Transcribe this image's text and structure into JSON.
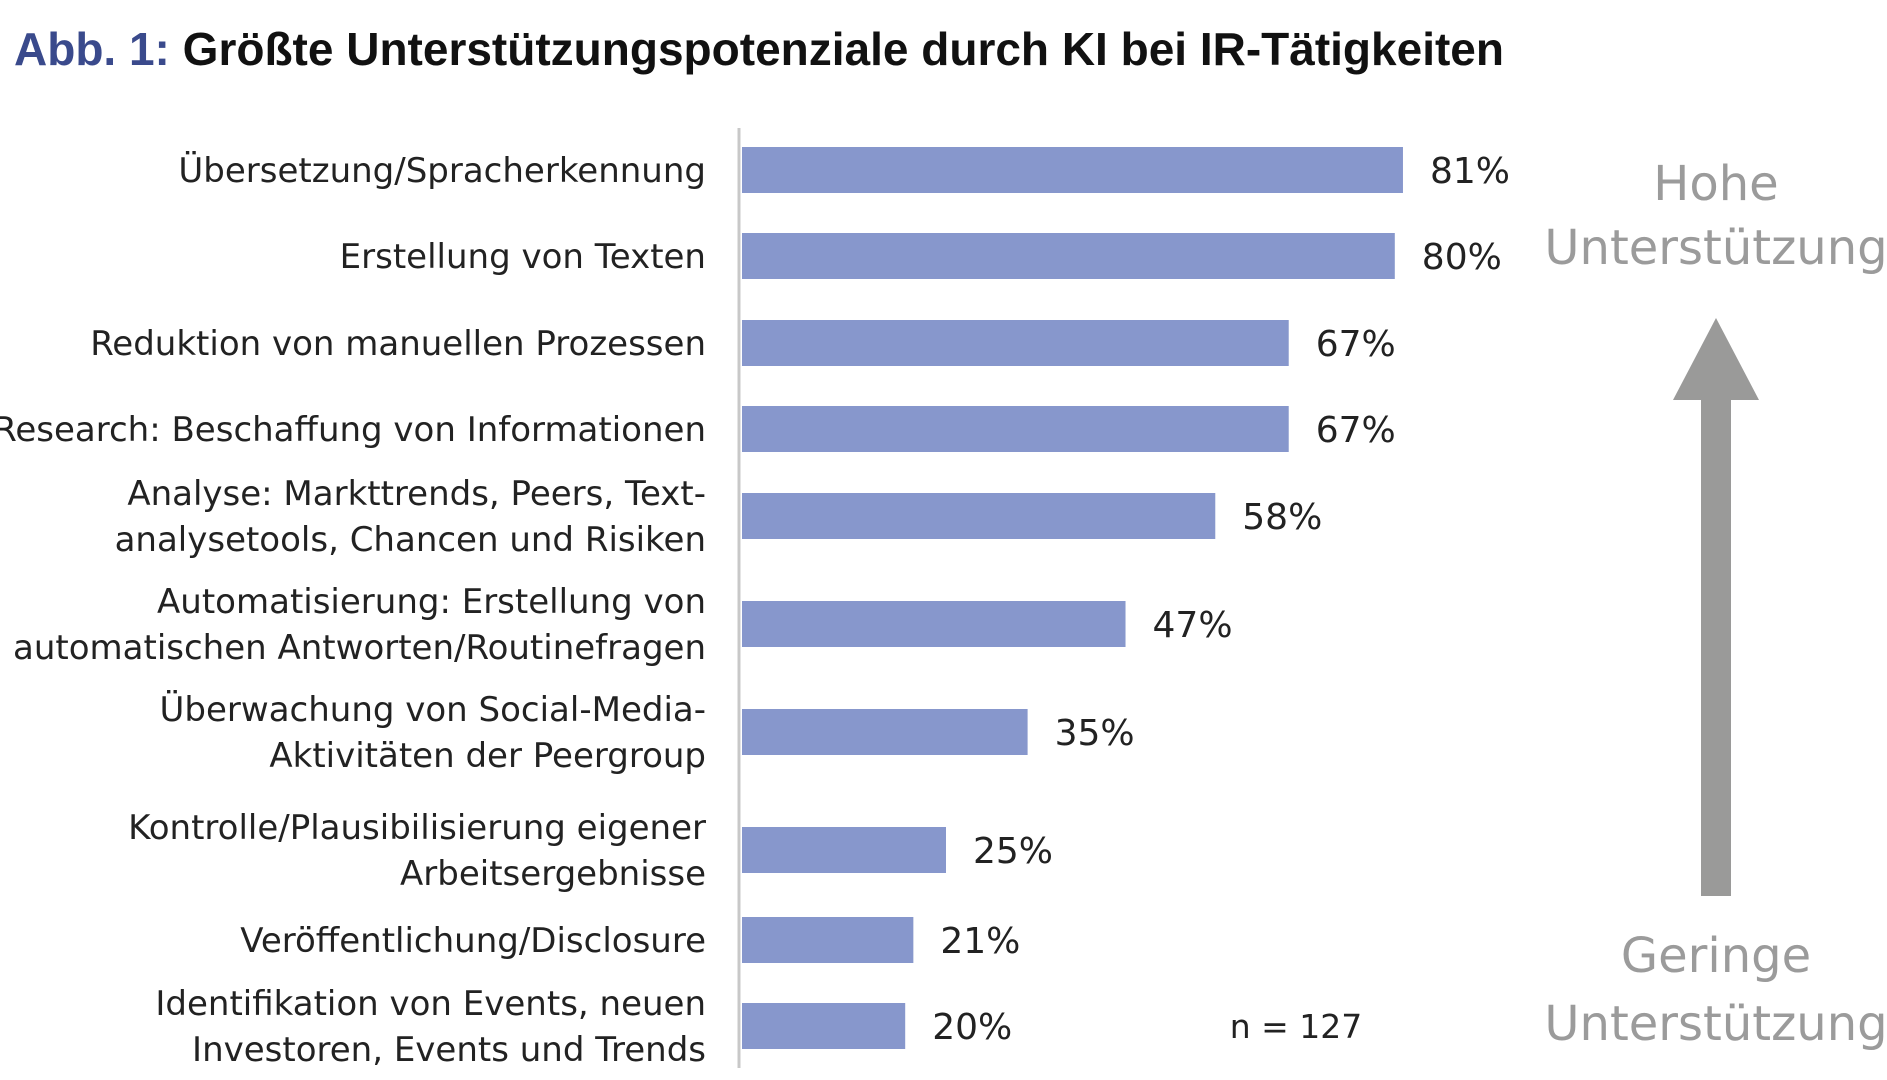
{
  "title": {
    "prefix": "Abb. 1:",
    "text": "Größte Unterstützungspotenziale durch KI bei IR-Tätigkeiten"
  },
  "colors": {
    "bar": "#8797cc",
    "title_prefix": "#3a4a8c",
    "scale_text": "#9b9b9b",
    "arrow": "#9a9a99"
  },
  "chart_data": {
    "type": "bar",
    "orientation": "horizontal",
    "categories": [
      [
        "Übersetzung/Spracherkennung"
      ],
      [
        "Erstellung von Texten"
      ],
      [
        "Reduktion von manuellen Prozessen"
      ],
      [
        "Research: Beschaffung von Informationen"
      ],
      [
        "Analyse: Markttrends, Peers, Text-",
        "analysetools, Chancen und Risiken"
      ],
      [
        "Automatisierung: Erstellung von",
        "automatischen Antworten/Routinefragen"
      ],
      [
        "Überwachung von Social-Media-",
        "Aktivitäten der Peergroup"
      ],
      [
        "Kontrolle/Plausibilisierung eigener",
        "Arbeitsergebnisse"
      ],
      [
        "Veröffentlichung/Disclosure"
      ],
      [
        "Identifikation von Events, neuen",
        "Investoren, Events und Trends"
      ]
    ],
    "values": [
      81,
      80,
      67,
      67,
      58,
      47,
      35,
      25,
      21,
      20
    ],
    "value_labels": [
      "81%",
      "80%",
      "67%",
      "67%",
      "58%",
      "47%",
      "35%",
      "25%",
      "21%",
      "20%"
    ],
    "xlim": [
      0,
      100
    ],
    "grid": false,
    "legend": "none",
    "annotation": "n = 127",
    "scale_top": [
      "Hohe",
      "Unterstützung"
    ],
    "scale_bottom": [
      "Geringe",
      "Unterstützung"
    ]
  }
}
